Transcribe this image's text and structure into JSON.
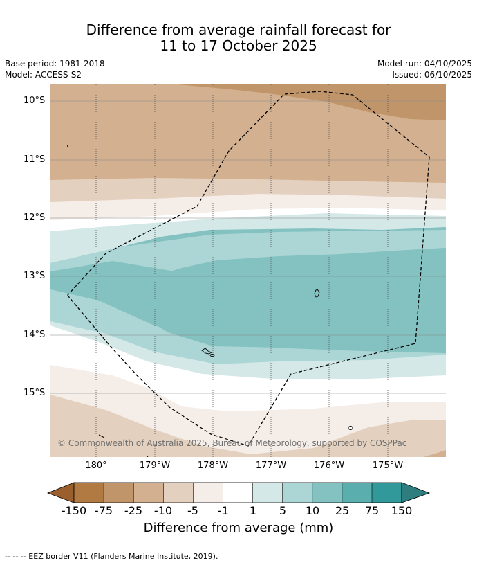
{
  "title": {
    "line1": "Difference from average rainfall forecast for",
    "line2": "11 to 17 October 2025"
  },
  "meta": {
    "base_period": "Base period: 1981-2018",
    "model": "Model: ACCESS-S2",
    "model_run": "Model run: 04/10/2025",
    "issued": "Issued: 06/10/2025"
  },
  "map": {
    "lat_labels": [
      "10°S",
      "11°S",
      "12°S",
      "13°S",
      "14°S",
      "15°S"
    ],
    "lon_labels": [
      "180°",
      "179°W",
      "178°W",
      "177°W",
      "176°W",
      "175°W"
    ],
    "copyright": "© Commonwealth of Australia 2025, Bureau of Meteorology, supported by COSPPac"
  },
  "colorbar": {
    "labels": [
      "-150",
      "-75",
      "-25",
      "-10",
      "-5",
      "-1",
      "1",
      "5",
      "10",
      "25",
      "75",
      "150"
    ],
    "title": "Difference from average (mm)",
    "colors": {
      "lt_-150": "#9a5f2d",
      "-150_-75": "#b07a42",
      "-75_-25": "#c1956a",
      "-25_-10": "#d3b190",
      "-10_-5": "#e4d0be",
      "-5_-1": "#f5ede8",
      "-1_1": "#ffffff",
      "1_5": "#d5e8e8",
      "5_10": "#acd6d6",
      "10_25": "#84c2c1",
      "25_75": "#5aaeae",
      "75_150": "#31999a",
      "gt_150": "#2e7e80"
    }
  },
  "footer": {
    "legend": "--  --  -- EEZ border V11 (Flanders Marine Institute, 2019)."
  }
}
